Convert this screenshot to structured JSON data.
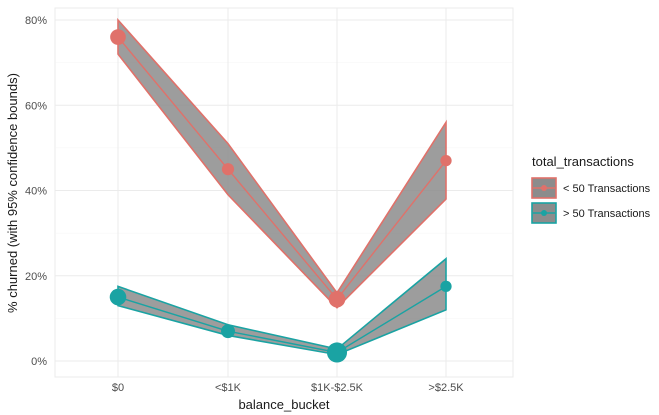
{
  "chart_data": {
    "type": "line",
    "xlabel": "balance_bucket",
    "ylabel": "% churned (with 95% confidence bounds)",
    "categories": [
      "$0",
      "<$1K",
      "$1K-$2.5K",
      ">$2.5K"
    ],
    "ylim": [
      0,
      80
    ],
    "yticks": [
      0,
      20,
      40,
      60,
      80
    ],
    "ytick_labels": [
      "0%",
      "20%",
      "40%",
      "60%",
      "80%"
    ],
    "grid": true,
    "legend": {
      "title": "total_transactions",
      "position": "right"
    },
    "series": [
      {
        "name": "< 50 Transactions",
        "color": "#e0716a",
        "values": [
          76,
          45,
          14.5,
          47
        ],
        "lower": [
          72,
          39,
          12.5,
          38
        ],
        "upper": [
          80,
          51,
          16,
          56
        ],
        "point_size": [
          2.2,
          1.4,
          2.4,
          1.2
        ]
      },
      {
        "name": "> 50 Transactions",
        "color": "#1aa3a3",
        "values": [
          15,
          7,
          2,
          17.5
        ],
        "lower": [
          13,
          6,
          1.5,
          12
        ],
        "upper": [
          17.5,
          8.5,
          2.8,
          24
        ],
        "point_size": [
          2.4,
          1.8,
          3.2,
          1.2
        ]
      }
    ]
  }
}
